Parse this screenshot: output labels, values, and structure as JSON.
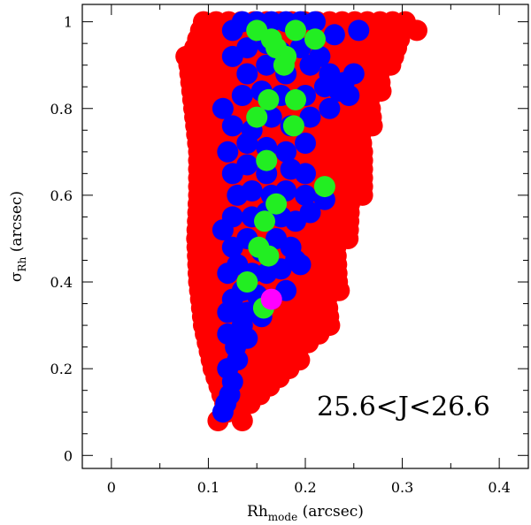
{
  "chart_data": {
    "type": "scatter",
    "title": "",
    "xlabel": {
      "main": "Rh",
      "sub": "mode",
      "suffix": " (arcsec)"
    },
    "ylabel": {
      "main": "σ",
      "sub": "Rh",
      "suffix": " (arcsec)"
    },
    "annotation": "25.6<J<26.6",
    "xlim": [
      -0.03,
      0.43
    ],
    "ylim": [
      -0.03,
      1.04
    ],
    "x_ticks": [
      0,
      0.1,
      0.2,
      0.3,
      0.4
    ],
    "x_tick_labels": [
      "0",
      "0.1",
      "0.2",
      "0.3",
      "0.4"
    ],
    "y_ticks": [
      0,
      0.2,
      0.4,
      0.6,
      0.8,
      1
    ],
    "y_tick_labels": [
      "0",
      "0.2",
      "0.4",
      "0.6",
      "0.8",
      "1"
    ],
    "grid": false,
    "colors": {
      "red": "#ff0000",
      "blue": "#0000ff",
      "green": "#22ee22",
      "magenta": "#ff00ff"
    },
    "red_bands": [
      {
        "y": 0.1,
        "x_min": 0.12,
        "x_max": 0.145
      },
      {
        "y": 0.2,
        "x_min": 0.105,
        "x_max": 0.19
      },
      {
        "y": 0.3,
        "x_min": 0.095,
        "x_max": 0.225
      },
      {
        "y": 0.4,
        "x_min": 0.09,
        "x_max": 0.235
      },
      {
        "y": 0.5,
        "x_min": 0.088,
        "x_max": 0.245
      },
      {
        "y": 0.6,
        "x_min": 0.09,
        "x_max": 0.26
      },
      {
        "y": 0.7,
        "x_min": 0.09,
        "x_max": 0.265
      },
      {
        "y": 0.8,
        "x_min": 0.085,
        "x_max": 0.275
      },
      {
        "y": 0.9,
        "x_min": 0.08,
        "x_max": 0.29
      },
      {
        "y": 1.0,
        "x_min": 0.095,
        "x_max": 0.305
      }
    ],
    "red_extra": [
      [
        0.077,
        0.92
      ],
      [
        0.11,
        0.08
      ],
      [
        0.135,
        0.08
      ],
      [
        0.315,
        0.98
      ],
      [
        0.3,
        0.98
      ],
      [
        0.275,
        0.9
      ],
      [
        0.27,
        0.88
      ],
      [
        0.257,
        0.64
      ],
      [
        0.235,
        0.38
      ],
      [
        0.19,
        0.22
      ]
    ],
    "series": [
      {
        "name": "blue",
        "color": "#0000ff",
        "points": [
          [
            0.115,
            0.1
          ],
          [
            0.118,
            0.12
          ],
          [
            0.122,
            0.14
          ],
          [
            0.125,
            0.17
          ],
          [
            0.12,
            0.2
          ],
          [
            0.13,
            0.22
          ],
          [
            0.128,
            0.25
          ],
          [
            0.12,
            0.28
          ],
          [
            0.14,
            0.27
          ],
          [
            0.135,
            0.3
          ],
          [
            0.12,
            0.33
          ],
          [
            0.14,
            0.33
          ],
          [
            0.155,
            0.32
          ],
          [
            0.125,
            0.36
          ],
          [
            0.135,
            0.38
          ],
          [
            0.15,
            0.37
          ],
          [
            0.165,
            0.36
          ],
          [
            0.18,
            0.38
          ],
          [
            0.12,
            0.42
          ],
          [
            0.13,
            0.44
          ],
          [
            0.145,
            0.42
          ],
          [
            0.16,
            0.42
          ],
          [
            0.175,
            0.43
          ],
          [
            0.195,
            0.44
          ],
          [
            0.115,
            0.52
          ],
          [
            0.125,
            0.48
          ],
          [
            0.14,
            0.5
          ],
          [
            0.155,
            0.47
          ],
          [
            0.17,
            0.5
          ],
          [
            0.185,
            0.48
          ],
          [
            0.125,
            0.55
          ],
          [
            0.145,
            0.55
          ],
          [
            0.16,
            0.56
          ],
          [
            0.175,
            0.55
          ],
          [
            0.19,
            0.54
          ],
          [
            0.205,
            0.56
          ],
          [
            0.13,
            0.6
          ],
          [
            0.145,
            0.61
          ],
          [
            0.165,
            0.6
          ],
          [
            0.18,
            0.61
          ],
          [
            0.2,
            0.6
          ],
          [
            0.22,
            0.59
          ],
          [
            0.125,
            0.65
          ],
          [
            0.14,
            0.67
          ],
          [
            0.16,
            0.65
          ],
          [
            0.185,
            0.66
          ],
          [
            0.2,
            0.65
          ],
          [
            0.12,
            0.7
          ],
          [
            0.14,
            0.72
          ],
          [
            0.16,
            0.71
          ],
          [
            0.18,
            0.7
          ],
          [
            0.2,
            0.72
          ],
          [
            0.125,
            0.76
          ],
          [
            0.145,
            0.75
          ],
          [
            0.165,
            0.78
          ],
          [
            0.185,
            0.76
          ],
          [
            0.205,
            0.78
          ],
          [
            0.225,
            0.8
          ],
          [
            0.115,
            0.8
          ],
          [
            0.135,
            0.83
          ],
          [
            0.155,
            0.84
          ],
          [
            0.175,
            0.83
          ],
          [
            0.2,
            0.83
          ],
          [
            0.22,
            0.85
          ],
          [
            0.235,
            0.84
          ],
          [
            0.245,
            0.83
          ],
          [
            0.14,
            0.88
          ],
          [
            0.16,
            0.9
          ],
          [
            0.18,
            0.88
          ],
          [
            0.205,
            0.9
          ],
          [
            0.225,
            0.88
          ],
          [
            0.24,
            0.86
          ],
          [
            0.25,
            0.88
          ],
          [
            0.14,
            0.94
          ],
          [
            0.16,
            0.95
          ],
          [
            0.175,
            0.93
          ],
          [
            0.195,
            0.94
          ],
          [
            0.215,
            0.92
          ],
          [
            0.125,
            0.98
          ],
          [
            0.135,
            1.0
          ],
          [
            0.15,
            1.0
          ],
          [
            0.165,
            1.0
          ],
          [
            0.18,
            1.0
          ],
          [
            0.195,
            1.0
          ],
          [
            0.21,
            1.0
          ],
          [
            0.23,
            0.97
          ],
          [
            0.255,
            0.98
          ],
          [
            0.125,
            0.92
          ],
          [
            0.19,
            0.45
          ]
        ]
      },
      {
        "name": "green",
        "color": "#22ee22",
        "points": [
          [
            0.15,
            0.98
          ],
          [
            0.165,
            0.96
          ],
          [
            0.17,
            0.94
          ],
          [
            0.18,
            0.92
          ],
          [
            0.19,
            0.98
          ],
          [
            0.21,
            0.96
          ],
          [
            0.178,
            0.9
          ],
          [
            0.162,
            0.82
          ],
          [
            0.19,
            0.82
          ],
          [
            0.15,
            0.78
          ],
          [
            0.188,
            0.76
          ],
          [
            0.16,
            0.68
          ],
          [
            0.22,
            0.62
          ],
          [
            0.17,
            0.58
          ],
          [
            0.158,
            0.54
          ],
          [
            0.152,
            0.48
          ],
          [
            0.162,
            0.46
          ],
          [
            0.14,
            0.4
          ],
          [
            0.157,
            0.34
          ]
        ]
      },
      {
        "name": "magenta",
        "color": "#ff00ff",
        "points": [
          [
            0.165,
            0.36
          ]
        ]
      }
    ]
  }
}
